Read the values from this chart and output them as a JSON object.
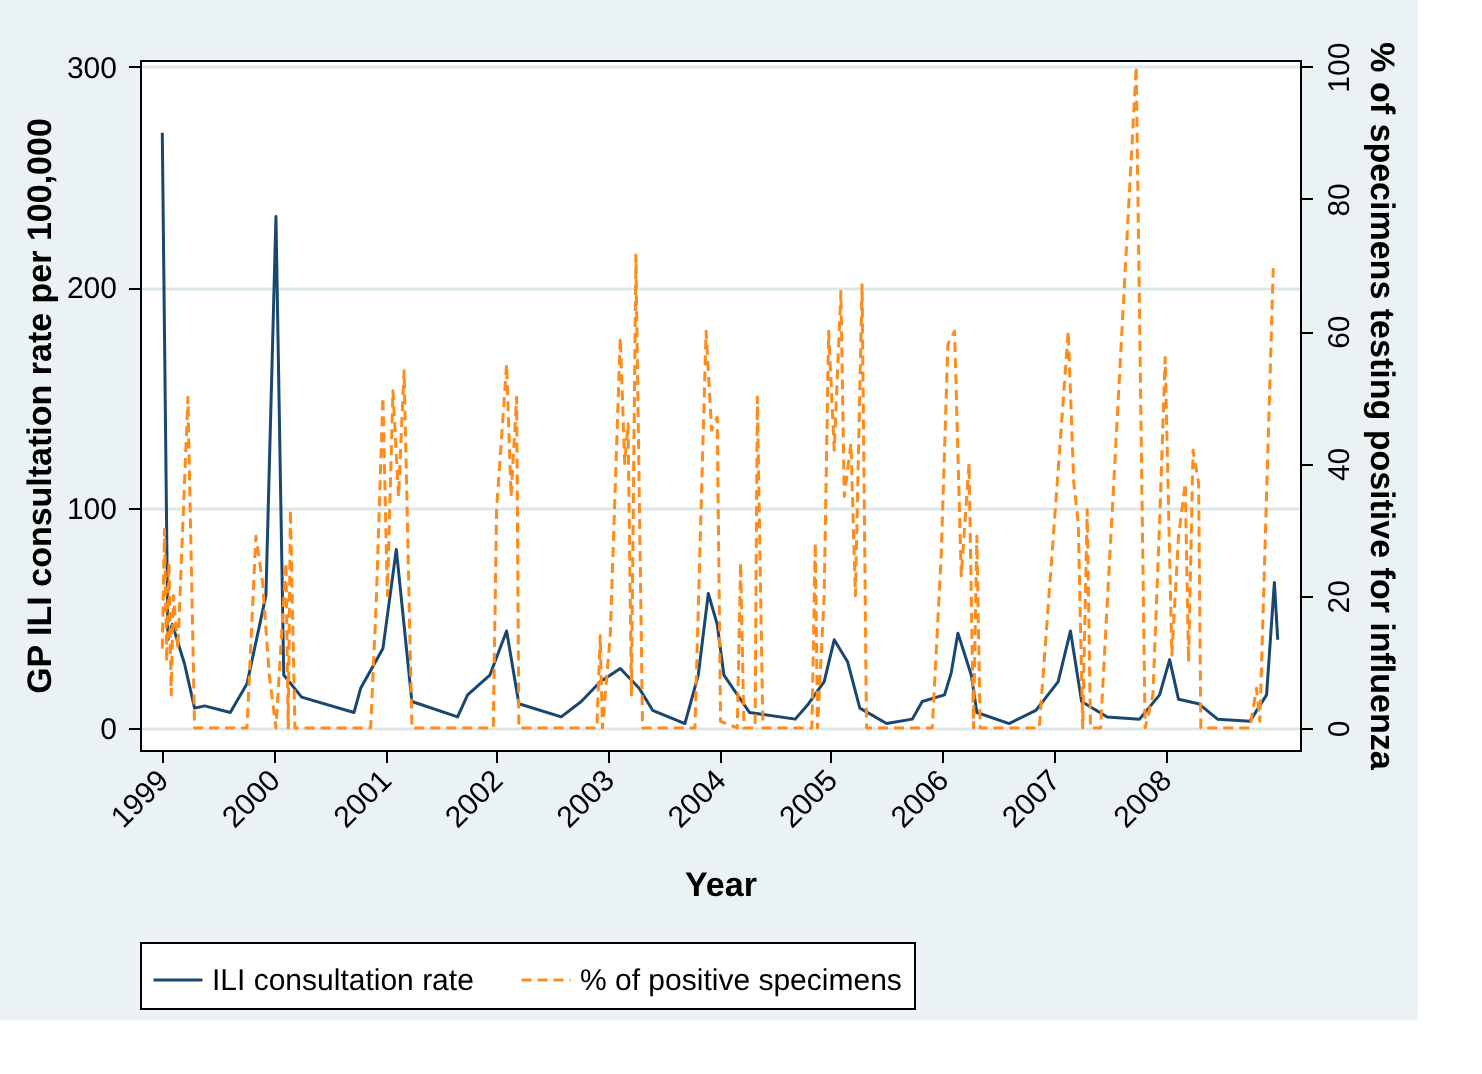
{
  "chart_data": {
    "type": "line",
    "xlabel": "Year",
    "ylabel": "GP ILI consultation rate per 100,000",
    "y2label": "% of specimens testing positive for influenza",
    "xlim": [
      1998.8,
      2009.21
    ],
    "xticks": [
      1999,
      2000,
      2001,
      2002,
      2003,
      2004,
      2005,
      2006,
      2007,
      2008
    ],
    "ylim": [
      -10,
      303
    ],
    "yticks": [
      0,
      100,
      200,
      300
    ],
    "y2lim": [
      -3.33,
      101
    ],
    "y2ticks": [
      0,
      20,
      40,
      60,
      80,
      100
    ],
    "grid": "y",
    "legend": "bottom",
    "series": [
      {
        "name": "ILI consultation rate",
        "color": "#1a476f",
        "line_style": "solid",
        "axis": "y",
        "x": [
          1999.0,
          1999.05,
          1999.09,
          1999.2,
          1999.29,
          1999.38,
          1999.61,
          1999.76,
          1999.93,
          2000.02,
          2000.09,
          2000.25,
          2000.72,
          2000.78,
          2000.98,
          2001.1,
          2001.24,
          2001.65,
          2001.74,
          2001.94,
          2002.09,
          2002.2,
          2002.58,
          2002.76,
          2002.93,
          2003.11,
          2003.28,
          2003.4,
          2003.69,
          2003.81,
          2003.9,
          2003.98,
          2004.04,
          2004.27,
          2004.68,
          2004.8,
          2004.94,
          2005.03,
          2005.15,
          2005.26,
          2005.5,
          2005.73,
          2005.82,
          2006.02,
          2006.08,
          2006.14,
          2006.26,
          2006.31,
          2006.6,
          2006.84,
          2007.04,
          2007.15,
          2007.25,
          2007.48,
          2007.77,
          2007.95,
          2008.04,
          2008.12,
          2008.3,
          2008.47,
          2008.76,
          2008.91,
          2008.98,
          2009.01
        ],
        "values": [
          270,
          40,
          47,
          29,
          9,
          10,
          7,
          20,
          60,
          232,
          24,
          14,
          7,
          18,
          36,
          81,
          12,
          5,
          15,
          24,
          44,
          11,
          5,
          12,
          21,
          27,
          18,
          8,
          2,
          24,
          61,
          47,
          24,
          7,
          4,
          11,
          21,
          40,
          30,
          9,
          2,
          4,
          12,
          15,
          25,
          43,
          24,
          7,
          2,
          8,
          21,
          44,
          12,
          5,
          4,
          15,
          31,
          13,
          11,
          4,
          3,
          15,
          66,
          40
        ]
      },
      {
        "name": "% of positive specimens",
        "color": "#ff8c1a",
        "line_style": "dashed",
        "axis": "y2",
        "x": [
          1999.0,
          1999.02,
          1999.04,
          1999.06,
          1999.08,
          1999.1,
          1999.14,
          1999.23,
          1999.29,
          1999.76,
          1999.84,
          1999.9,
          1999.96,
          2000.02,
          2000.11,
          2000.13,
          2000.15,
          2000.19,
          2000.87,
          2000.92,
          2000.98,
          2001.02,
          2001.07,
          2001.12,
          2001.17,
          2001.24,
          2001.97,
          2002.0,
          2002.09,
          2002.13,
          2002.18,
          2002.2,
          2002.9,
          2002.93,
          2002.95,
          2003.02,
          2003.11,
          2003.15,
          2003.18,
          2003.21,
          2003.25,
          2003.31,
          2003.78,
          2003.88,
          2003.93,
          2003.98,
          2004.01,
          2004.16,
          2004.19,
          2004.22,
          2004.32,
          2004.34,
          2004.39,
          2004.83,
          2004.86,
          2004.88,
          2004.94,
          2004.98,
          2005.03,
          2005.09,
          2005.12,
          2005.18,
          2005.22,
          2005.28,
          2005.32,
          2005.91,
          2005.99,
          2006.05,
          2006.11,
          2006.17,
          2006.24,
          2006.28,
          2006.31,
          2006.34,
          2006.87,
          2007.04,
          2007.13,
          2007.18,
          2007.22,
          2007.26,
          2007.3,
          2007.33,
          2007.42,
          2007.74,
          2007.82,
          2007.89,
          2007.95,
          2008.0,
          2008.06,
          2008.12,
          2008.18,
          2008.21,
          2008.25,
          2008.3,
          2008.32,
          2008.76,
          2008.82,
          2008.85,
          2008.97
        ],
        "values": [
          12,
          30,
          10,
          25,
          5,
          20,
          12,
          50,
          0,
          0,
          29,
          22,
          8,
          0,
          25,
          0,
          33,
          0,
          0,
          19,
          50,
          20,
          51,
          35,
          54,
          0,
          0,
          33,
          55,
          35,
          50,
          0,
          0,
          14,
          0,
          14,
          59,
          40,
          46,
          5,
          71.5,
          0,
          0,
          60,
          45,
          47,
          1,
          0,
          25,
          0,
          0,
          50,
          0,
          0,
          28,
          0,
          20,
          60,
          42,
          66,
          35,
          43,
          20,
          67,
          0,
          0,
          26,
          58,
          60,
          23,
          40,
          0,
          29,
          0,
          0,
          39,
          60,
          37,
          31,
          0,
          33,
          0,
          0,
          100,
          0,
          5,
          31,
          56,
          11,
          29,
          37,
          10,
          42,
          37,
          0,
          0,
          6,
          1,
          69.5
        ]
      }
    ]
  }
}
